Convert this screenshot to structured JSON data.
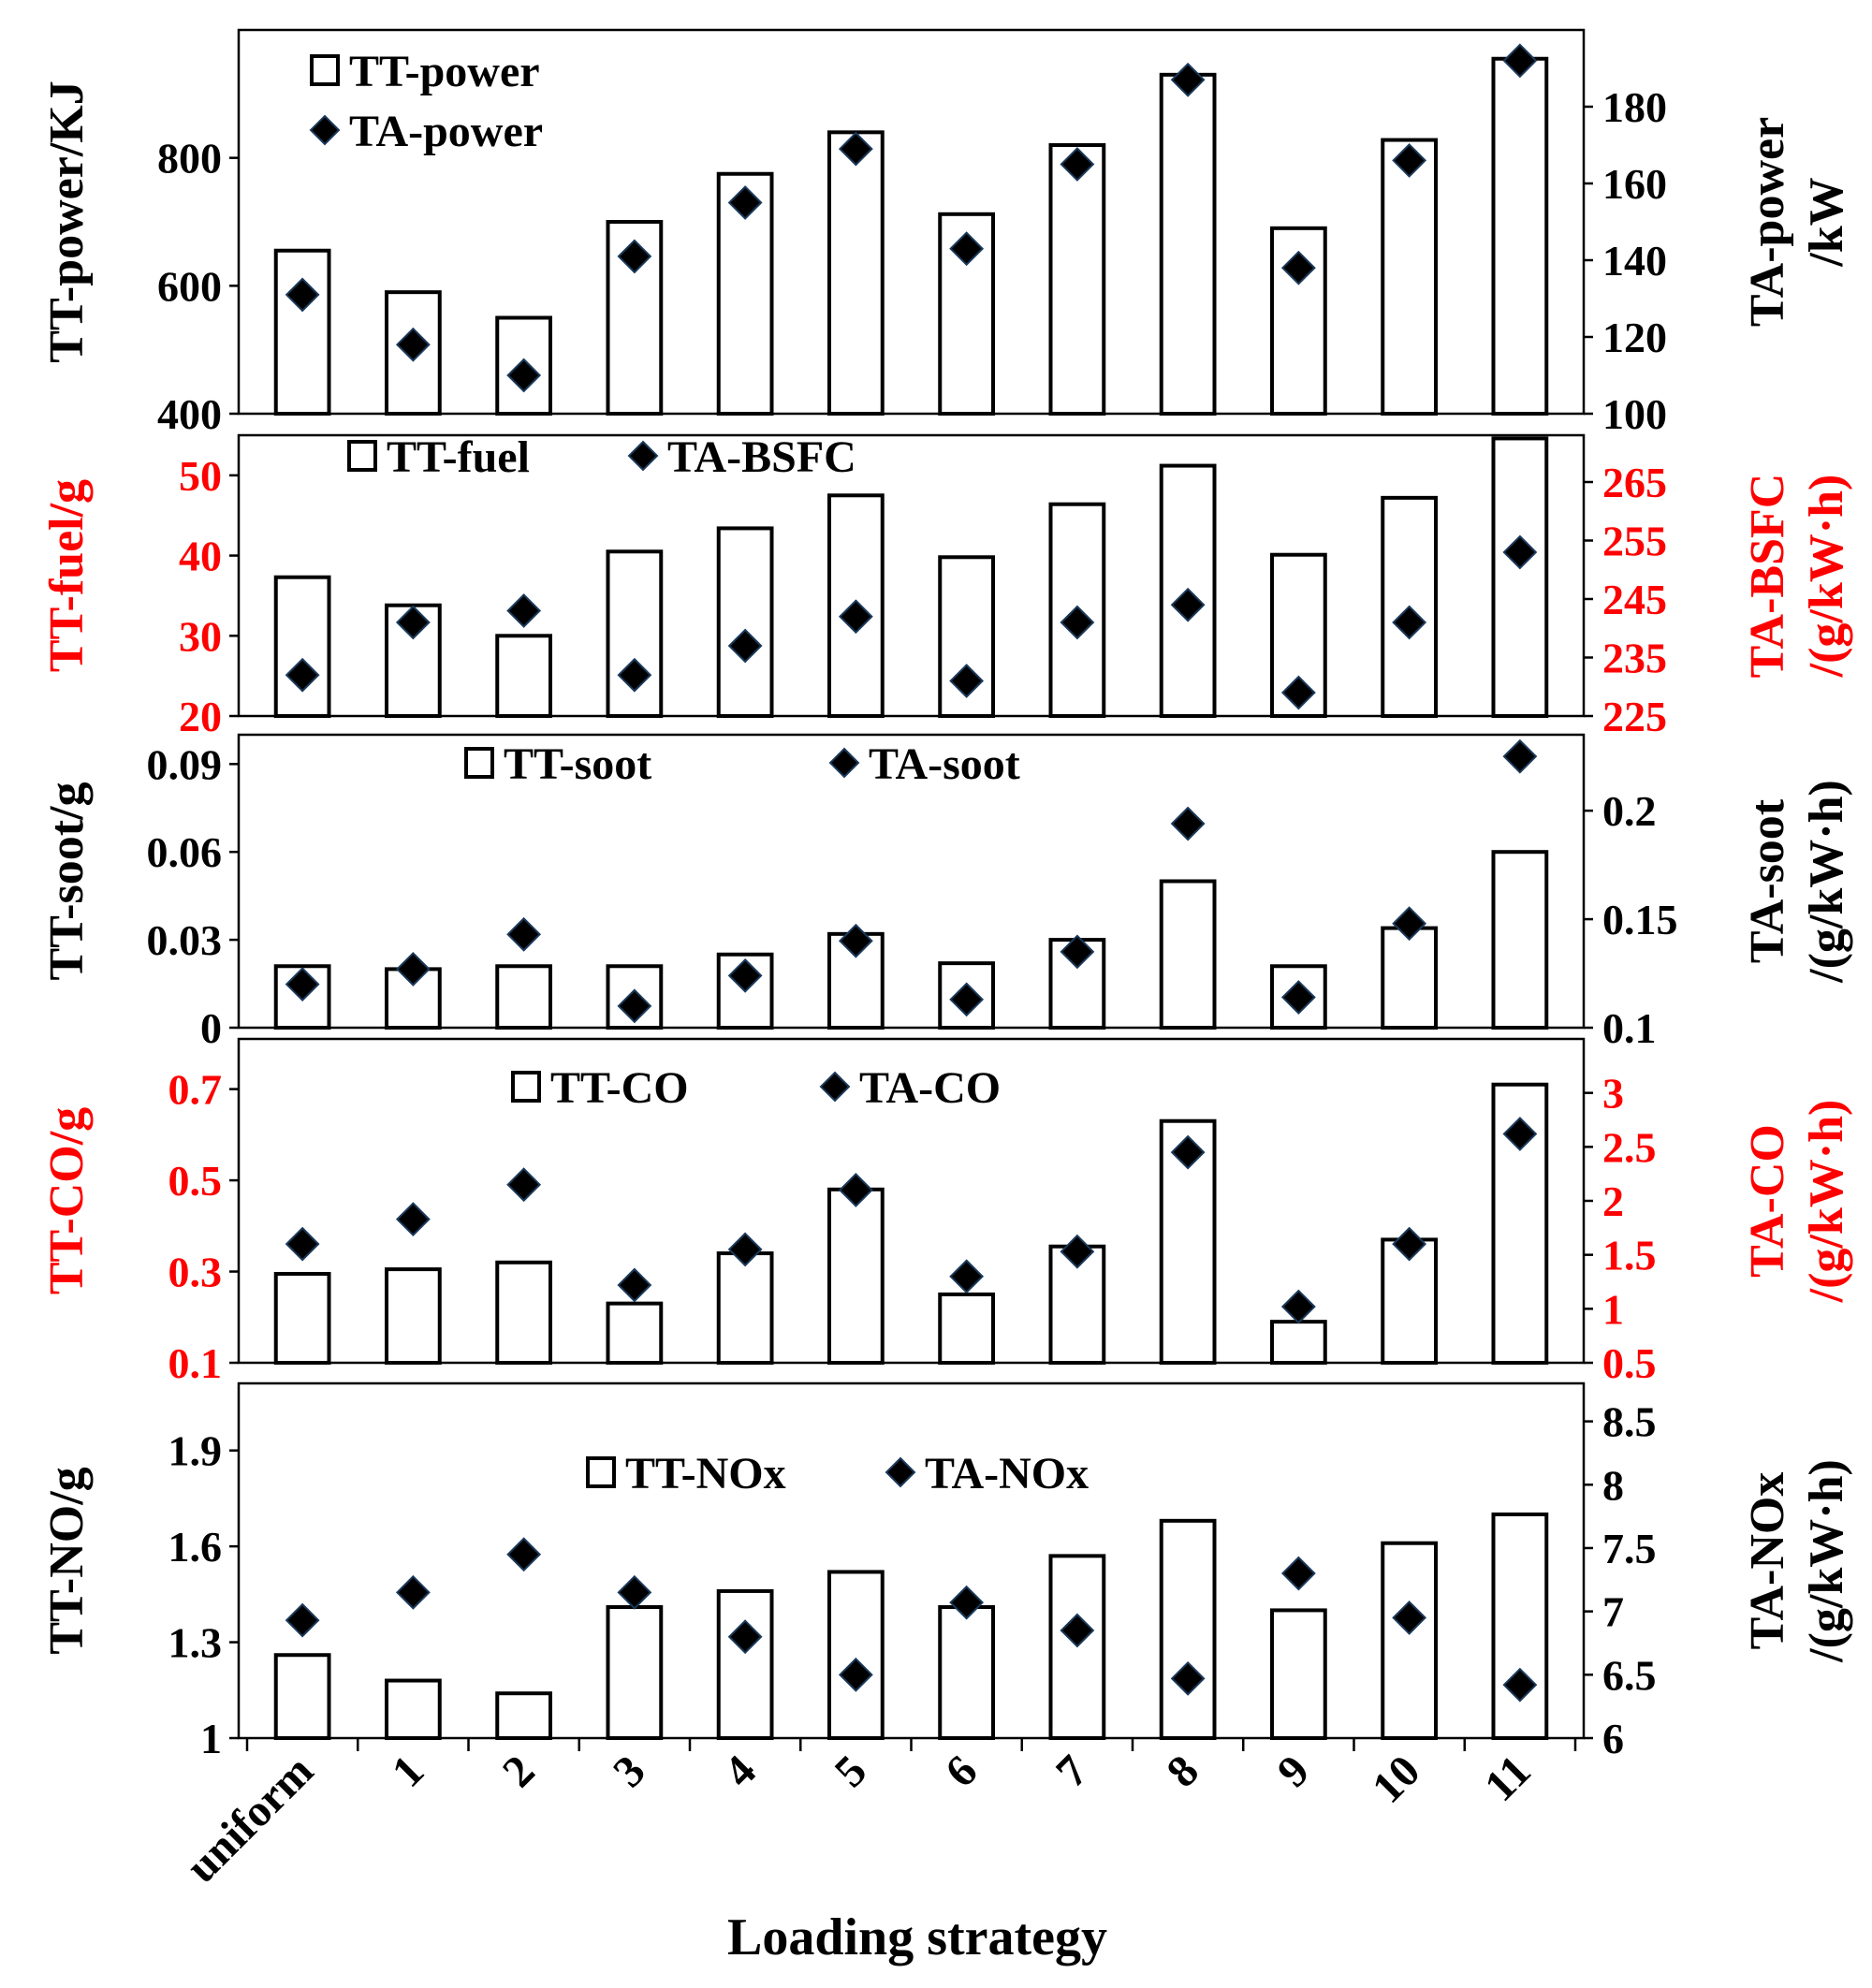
{
  "chart_data": {
    "type": "bar+scatter (dual axis, stacked panels)",
    "categories": [
      "uniform",
      "1",
      "2",
      "3",
      "4",
      "5",
      "6",
      "7",
      "8",
      "9",
      "10",
      "11"
    ],
    "xlabel": "Loading strategy",
    "panels": [
      {
        "label_color": "#000000",
        "ylabel_left": "TT-power/KJ",
        "ylabel_right_lines": [
          "TA-power",
          "/kW"
        ],
        "ylim_left": [
          400,
          1000
        ],
        "ylim_right": [
          100,
          200
        ],
        "yticks_left": [
          400,
          600,
          800
        ],
        "yticks_right": [
          100,
          120,
          140,
          160,
          180
        ],
        "series": [
          {
            "name": "TT-power",
            "kind": "bar",
            "axis": "left",
            "values": [
              655,
              590,
              550,
              700,
              775,
              840,
              712,
              820,
              930,
              690,
              828,
              955
            ]
          },
          {
            "name": "TA-power",
            "kind": "marker",
            "axis": "right",
            "values": [
              131,
              118,
              110,
              141,
              155,
              169,
              143,
              165,
              187,
              138,
              166,
              192
            ]
          }
        ],
        "legend": {
          "layout": "vertical",
          "items": [
            "TT-power",
            "TA-power"
          ]
        }
      },
      {
        "label_color": "#ff0000",
        "ylabel_left": "TT-fuel/g",
        "ylabel_right_lines": [
          "TA-BSFC",
          "/(g/kW·h)"
        ],
        "ylim_left": [
          20,
          55
        ],
        "ylim_right": [
          225,
          273
        ],
        "yticks_left": [
          20,
          30,
          40,
          50
        ],
        "yticks_right": [
          225,
          235,
          245,
          255,
          265
        ],
        "series": [
          {
            "name": "TT-fuel",
            "kind": "bar",
            "axis": "left",
            "values": [
              37.3,
              33.8,
              30,
              40.5,
              43.4,
              47.5,
              39.8,
              46.4,
              51.2,
              40.1,
              47.2,
              54.6
            ]
          },
          {
            "name": "TA-BSFC",
            "kind": "marker",
            "axis": "right",
            "values": [
              232,
              241,
              243,
              232,
              237,
              242,
              231,
              241,
              244,
              229,
              241,
              253
            ]
          }
        ],
        "legend": {
          "layout": "horizontal",
          "items": [
            "TT-fuel",
            "TA-BSFC"
          ]
        }
      },
      {
        "label_color": "#000000",
        "ylabel_left": "TT-soot/g",
        "ylabel_right_lines": [
          "TA-soot",
          "/(g/kW·h)"
        ],
        "ylim_left": [
          0,
          0.1
        ],
        "ylim_right": [
          0.1,
          0.235
        ],
        "yticks_left": [
          0,
          0.03,
          0.06,
          0.09
        ],
        "yticks_right": [
          0.1,
          0.15,
          0.2
        ],
        "series": [
          {
            "name": "TT-soot",
            "kind": "bar",
            "axis": "left",
            "values": [
              0.021,
              0.02,
              0.021,
              0.021,
              0.025,
              0.032,
              0.022,
              0.03,
              0.05,
              0.021,
              0.034,
              0.06
            ]
          },
          {
            "name": "TA-soot",
            "kind": "marker",
            "axis": "right",
            "values": [
              0.12,
              0.127,
              0.143,
              0.11,
              0.124,
              0.14,
              0.113,
              0.135,
              0.194,
              0.114,
              0.148,
              0.225
            ]
          }
        ],
        "legend": {
          "layout": "horizontal",
          "items": [
            "TT-soot",
            "TA-soot"
          ]
        }
      },
      {
        "label_color": "#ff0000",
        "ylabel_left": "TT-CO/g",
        "ylabel_right_lines": [
          "TA-CO",
          "/(g/kW·h)"
        ],
        "ylim_left": [
          0.1,
          0.81
        ],
        "ylim_right": [
          0.5,
          3.5
        ],
        "yticks_left": [
          0.1,
          0.3,
          0.5,
          0.7
        ],
        "yticks_right": [
          0.5,
          1,
          1.5,
          2,
          2.5,
          3
        ],
        "series": [
          {
            "name": "TT-CO",
            "kind": "bar",
            "axis": "left",
            "values": [
              0.295,
              0.305,
              0.32,
              0.23,
              0.34,
              0.48,
              0.25,
              0.355,
              0.63,
              0.19,
              0.37,
              0.71
            ]
          },
          {
            "name": "TA-CO",
            "kind": "marker",
            "axis": "right",
            "values": [
              1.6,
              1.83,
              2.15,
              1.22,
              1.55,
              2.1,
              1.3,
              1.53,
              2.45,
              1.02,
              1.6,
              2.62
            ]
          }
        ],
        "legend": {
          "layout": "horizontal",
          "items": [
            "TT-CO",
            "TA-CO"
          ]
        }
      },
      {
        "label_color": "#000000",
        "ylabel_left": "TT-NO/g",
        "ylabel_right_lines": [
          "TA-NOx",
          "/(g/kW·h)"
        ],
        "ylim_left": [
          1.0,
          2.11
        ],
        "ylim_right": [
          6,
          8.8
        ],
        "yticks_left": [
          1,
          1.3,
          1.6,
          1.9
        ],
        "yticks_right": [
          6,
          6.5,
          7,
          7.5,
          8,
          8.5
        ],
        "series": [
          {
            "name": "TT-NOx",
            "kind": "bar",
            "axis": "left",
            "values": [
              1.26,
              1.18,
              1.14,
              1.41,
              1.46,
              1.52,
              1.41,
              1.57,
              1.68,
              1.4,
              1.61,
              1.7
            ]
          },
          {
            "name": "TA-NOx",
            "kind": "marker",
            "axis": "right",
            "values": [
              6.93,
              7.15,
              7.45,
              7.15,
              6.8,
              6.5,
              7.07,
              6.85,
              6.47,
              7.3,
              6.95,
              6.42
            ]
          }
        ],
        "legend": {
          "layout": "horizontal",
          "items": [
            "TT-NOx",
            "TA-NOx"
          ]
        }
      }
    ]
  }
}
